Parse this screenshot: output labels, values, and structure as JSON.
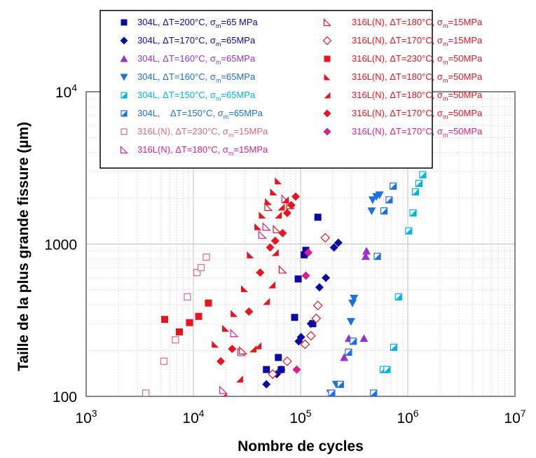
{
  "chart_data": {
    "type": "scatter",
    "title": "",
    "xlabel": "Nombre de cycles",
    "ylabel": "Taille de la plus grande fissure (µm)",
    "xscale": "log",
    "yscale": "log",
    "xlim": [
      1000,
      10000000
    ],
    "ylim": [
      100,
      10000
    ],
    "grid": true,
    "legend_placement": "top",
    "x_ticks": [
      {
        "value": 1000,
        "base": "10",
        "exp": "3"
      },
      {
        "value": 10000,
        "base": "10",
        "exp": "4"
      },
      {
        "value": 100000,
        "base": "10",
        "exp": "5"
      },
      {
        "value": 1000000,
        "base": "10",
        "exp": "6"
      },
      {
        "value": 10000000,
        "base": "10",
        "exp": "7"
      }
    ],
    "y_ticks": [
      {
        "value": 100,
        "label": "100",
        "base": "",
        "exp": ""
      },
      {
        "value": 1000,
        "label": "1000",
        "base": "",
        "exp": ""
      },
      {
        "value": 10000,
        "label": "",
        "base": "10",
        "exp": "4"
      }
    ],
    "series": [
      {
        "name": "304L, ΔT=200°C, σm=65 MPa",
        "label_pre": "304L, ΔT=200°C, σ",
        "label_sub": "m",
        "label_post": "=65 MPa",
        "color": "#0a0aa5",
        "marker": "square",
        "points": [
          [
            48000,
            150
          ],
          [
            62000,
            180
          ],
          [
            66000,
            150
          ],
          [
            88000,
            330
          ],
          [
            95000,
            590
          ],
          [
            108000,
            850
          ],
          [
            112000,
            910
          ],
          [
            130000,
            300
          ],
          [
            145000,
            1500
          ]
        ]
      },
      {
        "name": "304L, ΔT=170°C, σm=65MPa",
        "label_pre": "304L, ΔT=170°C, σ",
        "label_sub": "m",
        "label_post": "=65MPa",
        "color": "#0a0aa5",
        "marker": "diamond",
        "points": [
          [
            48000,
            120
          ],
          [
            60000,
            140
          ],
          [
            66000,
            150
          ],
          [
            96000,
            230
          ],
          [
            101000,
            245
          ],
          [
            125000,
            300
          ],
          [
            150000,
            520
          ],
          [
            172000,
            600
          ],
          [
            205000,
            950
          ],
          [
            225000,
            1020
          ]
        ]
      },
      {
        "name": "304L, ΔT=160°C, σm=65MPa",
        "label_pre": "304L, ΔT=160°C, σ",
        "label_sub": "m",
        "label_post": "=65MPa",
        "color": "#9932cc",
        "marker": "triangle-up",
        "points": [
          [
            255000,
            180
          ],
          [
            282000,
            240
          ],
          [
            390000,
            240
          ],
          [
            405000,
            830
          ],
          [
            412000,
            900
          ]
        ]
      },
      {
        "name": "304L, ΔT=160°C, σm=65MPa",
        "label_pre": "304L, ΔT=160°C, σ",
        "label_sub": "m",
        "label_post": "=65MPa",
        "color": "#1e6fe0",
        "marker": "triangle-down",
        "points": [
          [
            190000,
            105
          ],
          [
            215000,
            120
          ],
          [
            295000,
            310
          ],
          [
            305000,
            410
          ],
          [
            315000,
            440
          ],
          [
            460000,
            1650
          ],
          [
            470000,
            1950
          ],
          [
            510000,
            2050
          ],
          [
            545000,
            2100
          ]
        ]
      },
      {
        "name": "304L, ΔT=150°C, σm=65MPa",
        "label_pre": "304L, ΔT=150°C, σ",
        "label_sub": "m",
        "label_post": "=65MPa",
        "color": "#00b4e6",
        "marker": "square-half",
        "points": [
          [
            590000,
            150
          ],
          [
            640000,
            150
          ],
          [
            740000,
            210
          ],
          [
            820000,
            450
          ],
          [
            1020000,
            1220
          ],
          [
            1120000,
            1600
          ],
          [
            1180000,
            2200
          ],
          [
            1270000,
            2500
          ],
          [
            1380000,
            2850
          ]
        ]
      },
      {
        "name": "304L, ΔT=150°C, σm=65MPa",
        "label_pre": "304L,    ΔT=150°C, σ",
        "label_sub": "m",
        "label_post": "=65MPa",
        "color": "#1e6fe0",
        "marker": "square-half",
        "points": [
          [
            195000,
            105
          ],
          [
            235000,
            120
          ],
          [
            280000,
            195
          ],
          [
            310000,
            230
          ],
          [
            480000,
            105
          ],
          [
            520000,
            830
          ],
          [
            600000,
            1650
          ],
          [
            670000,
            1950
          ],
          [
            730000,
            2400
          ]
        ]
      },
      {
        "name": "316L(N), ΔT=230°C, σm=15MPa",
        "label_pre": "316L(N), ΔT=230°C, σ",
        "label_sub": "m",
        "label_post": "=15MPa",
        "color": "#e06688",
        "marker": "square-open",
        "points": [
          [
            3600,
            105
          ],
          [
            5300,
            170
          ],
          [
            6800,
            235
          ],
          [
            8800,
            450
          ],
          [
            10800,
            650
          ],
          [
            11800,
            700
          ],
          [
            13200,
            820
          ]
        ]
      },
      {
        "name": "316L(N), ΔT=180°C, σm=15MPa",
        "label_pre": "316L(N), ΔT=180°C, σ",
        "label_sub": "m",
        "label_post": "=15MPa",
        "color": "#dc1e8c",
        "marker": "triangle-open",
        "points": [
          [
            19000,
            110
          ],
          [
            24000,
            260
          ],
          [
            28000,
            195
          ],
          [
            44000,
            1150
          ],
          [
            48000,
            1300
          ],
          [
            72000,
            1980
          ]
        ]
      },
      {
        "name": "316L(N), ΔT=180°C, σm=15MPa",
        "label_pre": "316L(N), ΔT=180°C, σ",
        "label_sub": "m",
        "label_post": "=15MPa",
        "color": "#e8141e",
        "marker": "triangle-open",
        "points": [
          [
            29000,
            200
          ],
          [
            50000,
            1750
          ],
          [
            60000,
            1250
          ],
          [
            68000,
            680
          ],
          [
            80000,
            1800
          ]
        ]
      },
      {
        "name": "316L(N), ΔT=170°C, σm=15MPa",
        "label_pre": "316L(N), ΔT=170°C, σ",
        "label_sub": "m",
        "label_post": "=15MPa",
        "color": "#e8141e",
        "marker": "diamond-open",
        "points": [
          [
            55000,
            140
          ],
          [
            75000,
            170
          ],
          [
            110000,
            220
          ],
          [
            125000,
            250
          ],
          [
            140000,
            325
          ],
          [
            145000,
            395
          ],
          [
            170000,
            1100
          ]
        ]
      },
      {
        "name": "316L(N), ΔT=230°C, σm=50MPa",
        "label_pre": "316L(N), ΔT=230°C, σ",
        "label_sub": "m",
        "label_post": "=50MPa",
        "color": "#e8141e",
        "marker": "square",
        "points": [
          [
            5400,
            320
          ],
          [
            7400,
            265
          ],
          [
            9200,
            305
          ],
          [
            11200,
            335
          ],
          [
            13800,
            410
          ]
        ]
      },
      {
        "name": "316L(N), ΔT=180°C, σm=50MPa",
        "label_pre": "316L(N), ΔT=180°C, σ",
        "label_sub": "m",
        "label_post": "=50MPa",
        "color": "#e8141e",
        "marker": "triangle-right",
        "points": [
          [
            16000,
            220
          ],
          [
            20000,
            280
          ],
          [
            24000,
            350
          ],
          [
            30000,
            510
          ],
          [
            34000,
            850
          ],
          [
            40000,
            1300
          ],
          [
            44000,
            1550
          ],
          [
            50000,
            1900
          ],
          [
            56000,
            2200
          ],
          [
            62000,
            2600
          ]
        ]
      },
      {
        "name": "316L(N), ΔT=180°C, σm=50MPa",
        "label_pre": "316L(N), ΔT=180°C, σ",
        "label_sub": "m",
        "label_post": "=50MPa",
        "color": "#e8141e",
        "marker": "triangle-left",
        "points": [
          [
            19000,
            100
          ],
          [
            27000,
            130
          ],
          [
            36000,
            205
          ],
          [
            40000,
            215
          ],
          [
            48000,
            420
          ],
          [
            54000,
            540
          ],
          [
            58000,
            880
          ],
          [
            62000,
            1550
          ],
          [
            66000,
            1750
          ],
          [
            72000,
            1950
          ]
        ]
      },
      {
        "name": "316L(N), ΔT=170°C, σm=50MPa",
        "label_pre": "316L(N), ΔT=170°C, σ",
        "label_sub": "m",
        "label_post": "=50MPa",
        "color": "#e8141e",
        "marker": "diamond",
        "points": [
          [
            18000,
            170
          ],
          [
            23000,
            205
          ],
          [
            33000,
            360
          ],
          [
            42000,
            650
          ],
          [
            52000,
            950
          ],
          [
            58000,
            1050
          ],
          [
            68000,
            1180
          ],
          [
            75000,
            1600
          ],
          [
            82000,
            1800
          ],
          [
            90000,
            2050
          ]
        ]
      },
      {
        "name": "316L(N), ΔT=170°C, σm=50MPa",
        "label_pre": "316L(N), ΔT=170°C, σ",
        "label_sub": "m",
        "label_post": "=50MPa",
        "color": "#dc1e8c",
        "marker": "diamond",
        "points": [
          [
            92000,
            150
          ],
          [
            112000,
            620
          ],
          [
            118000,
            880
          ]
        ]
      }
    ]
  }
}
